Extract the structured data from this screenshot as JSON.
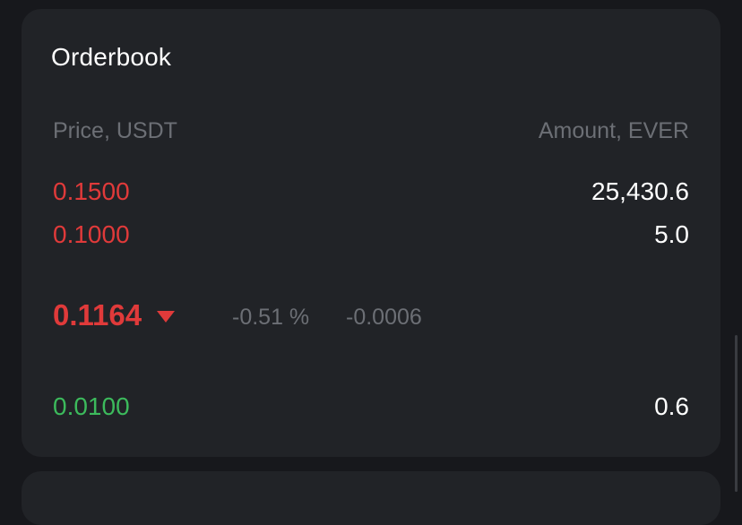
{
  "orderbook": {
    "title": "Orderbook",
    "columns": {
      "price": "Price, USDT",
      "amount": "Amount, EVER"
    },
    "asks": [
      {
        "price": "0.1500",
        "amount": "25,430.6"
      },
      {
        "price": "0.1000",
        "amount": "5.0"
      }
    ],
    "last_trade": {
      "price": "0.1164",
      "direction_icon": "triangle-down-icon",
      "change_percent": "-0.51 %",
      "change_abs": "-0.0006"
    },
    "bids": [
      {
        "price": "0.0100",
        "amount": "0.6"
      }
    ]
  },
  "colors": {
    "ask": "#e03a3a",
    "bid": "#3cba5c",
    "muted": "#6c6f75",
    "card": "#212327",
    "background": "#17181c"
  }
}
